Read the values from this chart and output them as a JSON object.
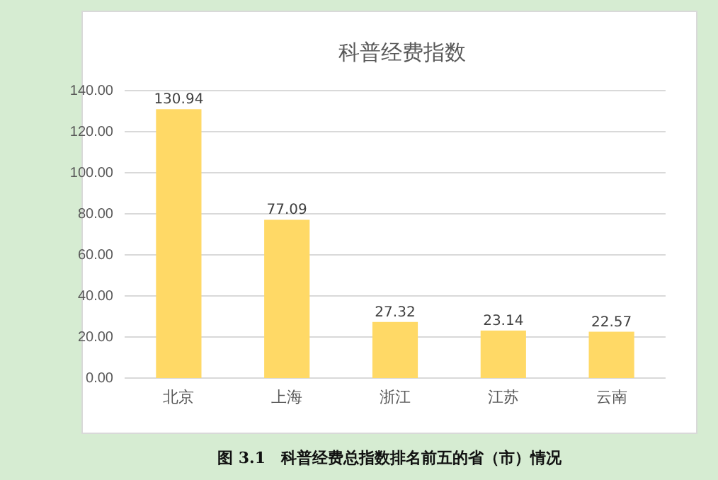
{
  "chart_data": {
    "type": "bar",
    "title": "科普经费指数",
    "categories": [
      "北京",
      "上海",
      "浙江",
      "江苏",
      "云南"
    ],
    "values": [
      130.94,
      77.09,
      27.32,
      23.14,
      22.57
    ],
    "color": "#ffd966",
    "ylim": [
      0,
      140
    ],
    "yticks": [
      {
        "value": 0,
        "label": "0.00"
      },
      {
        "value": 20,
        "label": "20.00"
      },
      {
        "value": 40,
        "label": "40.00"
      },
      {
        "value": 60,
        "label": "60.00"
      },
      {
        "value": 80,
        "label": "80.00"
      },
      {
        "value": 100,
        "label": "100.00"
      },
      {
        "value": 120,
        "label": "120.00"
      },
      {
        "value": 140,
        "label": "140.00"
      }
    ],
    "grid": "y",
    "data_labels": true,
    "annotations": [
      "图 3.1　科普经费总指数排名前五的省（市）情况"
    ]
  }
}
